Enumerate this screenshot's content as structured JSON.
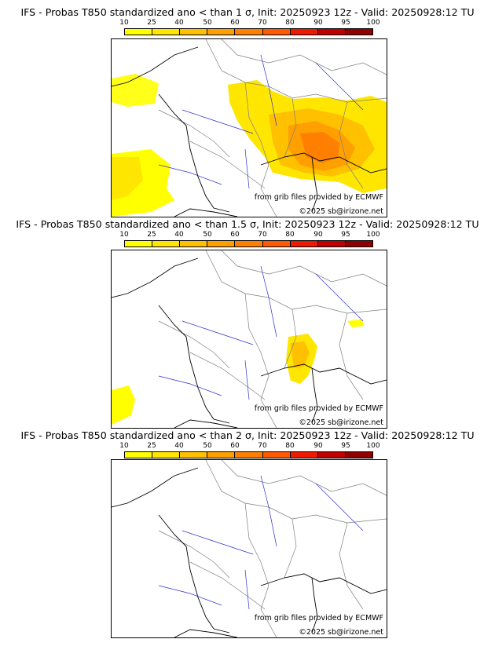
{
  "colorbar": {
    "ticks": [
      "10",
      "25",
      "40",
      "50",
      "60",
      "70",
      "80",
      "90",
      "95",
      "100"
    ],
    "colors": [
      "#ffff00",
      "#ffe600",
      "#ffc000",
      "#ffa000",
      "#ff8000",
      "#ff5a00",
      "#ee1a00",
      "#c00000",
      "#900000",
      "#600000"
    ]
  },
  "panels": [
    {
      "title": "IFS - Probas T850  standardized ano < than 1 σ, Init: 20250923 12z - Valid: 20250928:12 TU",
      "credit_grib": "from grib files provided by ECMWF",
      "credit_site": "©2025 sb@irizone.net"
    },
    {
      "title": "IFS - Probas T850  standardized ano < than 1.5 σ, Init: 20250923 12z - Valid: 20250928:12 TU",
      "credit_grib": "from grib files provided by ECMWF",
      "credit_site": "©2025 sb@irizone.net"
    },
    {
      "title": "IFS - Probas T850  standardized ano < than 2 σ, Init: 20250923 12z - Valid: 20250928:12 TU",
      "credit_grib": "from grib files provided by ECMWF",
      "credit_site": "©2025 sb@irizone.net"
    }
  ]
}
